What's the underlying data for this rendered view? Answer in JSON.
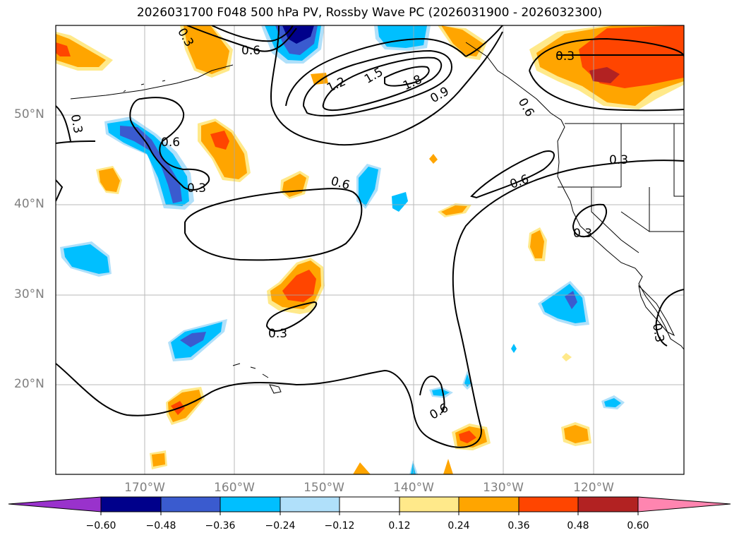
{
  "title": "2026031700 F048 500 hPa PV, Rossby Wave PC (2026031900 - 2026032300)",
  "lat_labels": [
    "50°N",
    "40°N",
    "30°N",
    "20°N"
  ],
  "lon_labels": [
    "170°W",
    "160°W",
    "150°W",
    "140°W",
    "130°W",
    "120°W"
  ],
  "contour_labels": [
    "0.3",
    "0.6",
    "0.3",
    "0.6",
    "0.3",
    "1.2",
    "1.5",
    "1.8",
    "0.9",
    "0.6",
    "0.3",
    "0.6",
    "0.3",
    "0.6",
    "0.3",
    "0.6",
    "0.3",
    "0.3"
  ],
  "colorbar": {
    "tick_labels": [
      "−0.60",
      "−0.48",
      "−0.36",
      "−0.24",
      "−0.12",
      "0.12",
      "0.24",
      "0.36",
      "0.48",
      "0.60"
    ],
    "colors": [
      "#9932cc",
      "#00008b",
      "#3a5bcf",
      "#00bfff",
      "#b0e0fa",
      "#ffffff",
      "#ffe98a",
      "#ffa500",
      "#ff4500",
      "#b22222",
      "#ff85b0"
    ]
  },
  "fill_colors": {
    "dark_blue": "#00008b",
    "mid_blue": "#3a5bcf",
    "blue": "#00bfff",
    "light_blue": "#b0e0fa",
    "yellow": "#ffe98a",
    "orange": "#ffa500",
    "red_orange": "#ff4500",
    "dark_red": "#b22222"
  }
}
